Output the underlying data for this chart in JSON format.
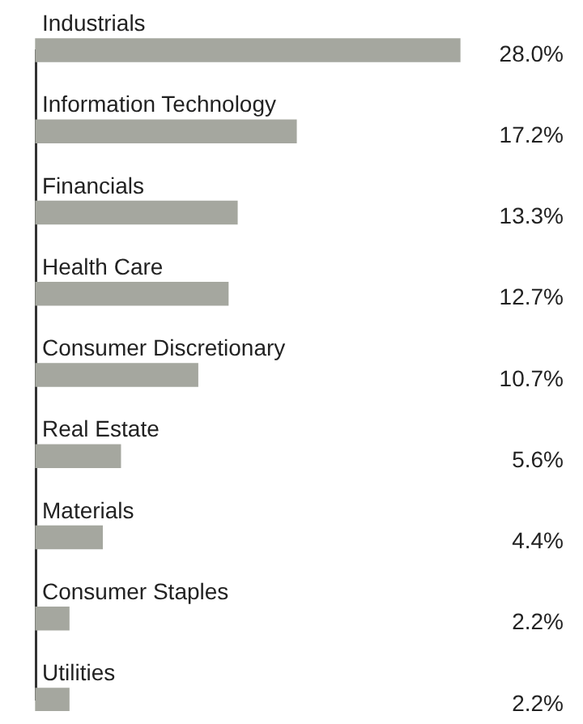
{
  "chart_data": {
    "type": "bar",
    "orientation": "horizontal",
    "categories": [
      "Industrials",
      "Information Technology",
      "Financials",
      "Health Care",
      "Consumer Discretionary",
      "Real Estate",
      "Materials",
      "Consumer Staples",
      "Utilities"
    ],
    "values": [
      28.0,
      17.2,
      13.3,
      12.7,
      10.7,
      5.6,
      4.4,
      2.2,
      2.2
    ],
    "value_labels": [
      "28.0%",
      "17.2%",
      "13.3%",
      "12.7%",
      "10.7%",
      "5.6%",
      "4.4%",
      "2.2%",
      "2.2%"
    ],
    "color": "#a5a79f"
  }
}
